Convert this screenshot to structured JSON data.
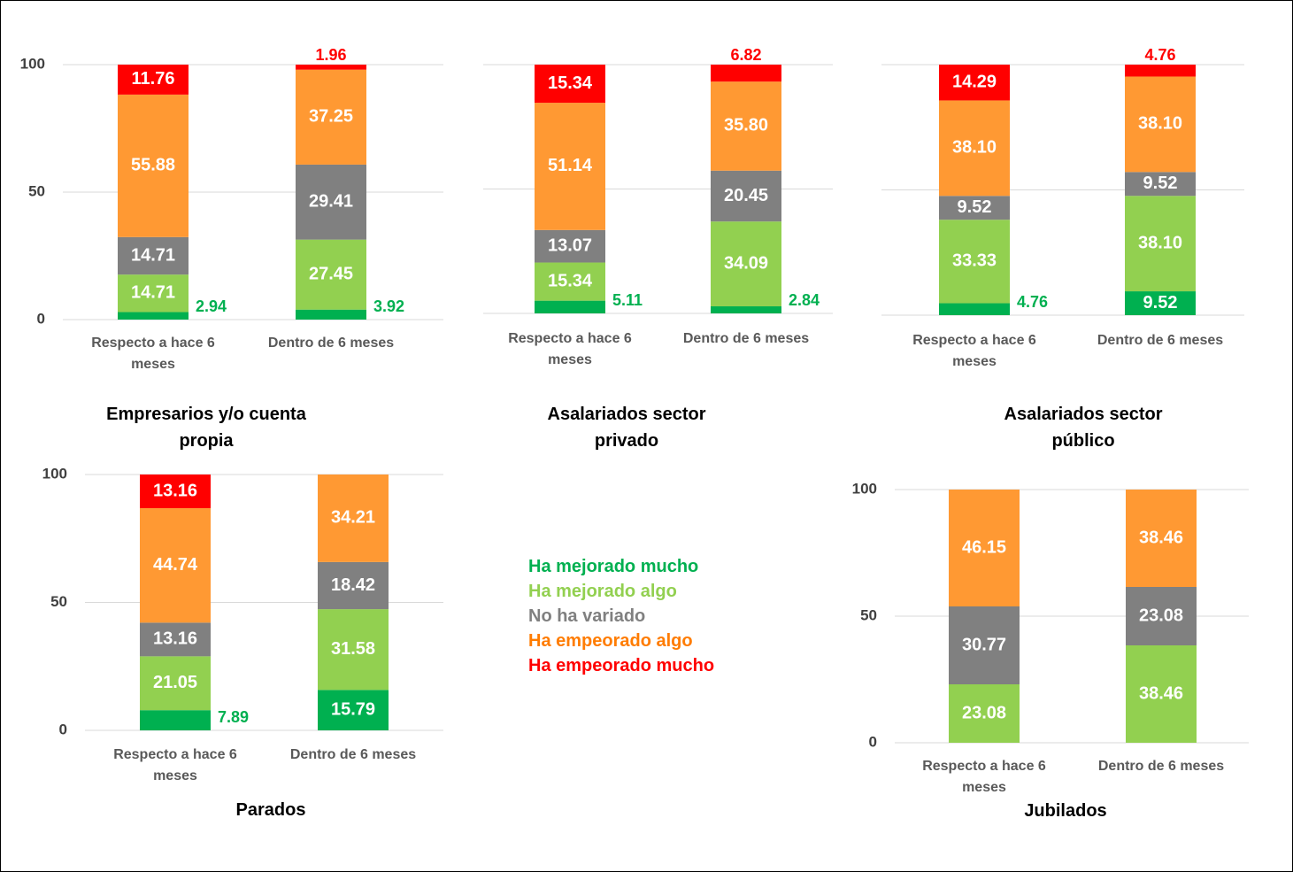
{
  "legend": [
    {
      "name": "Ha mejorado mucho",
      "color": "#00b050"
    },
    {
      "name": "Ha mejorado algo",
      "color": "#92d050"
    },
    {
      "name": "No ha variado",
      "color": "#808080"
    },
    {
      "name": "Ha empeorado algo",
      "color": "#ff7c00"
    },
    {
      "name": "Ha empeorado mucho",
      "color": "#ff0000"
    }
  ],
  "chart_data": [
    {
      "type": "stacked_bar",
      "title": "Empresarios y/o cuenta propia",
      "categories": [
        "Respecto a hace 6 meses",
        "Dentro de 6 meses"
      ],
      "ylim": [
        0,
        100
      ],
      "yticks": [
        0,
        50,
        100
      ],
      "ytick_labels": true,
      "grid": true,
      "series": [
        {
          "color": "#00b050",
          "values": [
            2.94,
            3.92
          ],
          "value_labels": [
            "2.94",
            "3.92"
          ]
        },
        {
          "color": "#92d050",
          "values": [
            14.71,
            27.45
          ],
          "value_labels": [
            "14.71",
            "27.45"
          ]
        },
        {
          "color": "#808080",
          "values": [
            14.71,
            29.41
          ],
          "value_labels": [
            "14.71",
            "29.41"
          ]
        },
        {
          "color": "#ff9933",
          "values": [
            55.88,
            37.25
          ],
          "value_labels": [
            "55.88",
            "37.25"
          ]
        },
        {
          "color": "#ff0000",
          "values": [
            11.76,
            1.96
          ],
          "value_labels": [
            "11.76",
            "1.96"
          ]
        }
      ]
    },
    {
      "type": "stacked_bar",
      "title": "Asalariados sector privado",
      "categories": [
        "Respecto a hace 6 meses",
        "Dentro de 6 meses"
      ],
      "ylim": [
        0,
        100
      ],
      "yticks": [
        0,
        50,
        100
      ],
      "ytick_labels": false,
      "grid": true,
      "series": [
        {
          "color": "#00b050",
          "values": [
            5.11,
            2.84
          ],
          "value_labels": [
            "5.11",
            "2.84"
          ]
        },
        {
          "color": "#92d050",
          "values": [
            15.34,
            34.09
          ],
          "value_labels": [
            "15.34",
            "34.09"
          ]
        },
        {
          "color": "#808080",
          "values": [
            13.07,
            20.45
          ],
          "value_labels": [
            "13.07",
            "20.45"
          ]
        },
        {
          "color": "#ff9933",
          "values": [
            51.14,
            35.8
          ],
          "value_labels": [
            "51.14",
            "35.80"
          ]
        },
        {
          "color": "#ff0000",
          "values": [
            15.34,
            6.82
          ],
          "value_labels": [
            "15.34",
            "6.82"
          ]
        }
      ]
    },
    {
      "type": "stacked_bar",
      "title": "Asalariados sector público",
      "categories": [
        "Respecto a hace 6 meses",
        "Dentro de 6 meses"
      ],
      "ylim": [
        0,
        100
      ],
      "yticks": [
        0,
        50,
        100
      ],
      "ytick_labels": false,
      "grid": true,
      "series": [
        {
          "color": "#00b050",
          "values": [
            4.76,
            9.52
          ],
          "value_labels": [
            "4.76",
            "9.52"
          ]
        },
        {
          "color": "#92d050",
          "values": [
            33.33,
            38.1
          ],
          "value_labels": [
            "33.33",
            "38.10"
          ]
        },
        {
          "color": "#808080",
          "values": [
            9.52,
            9.52
          ],
          "value_labels": [
            "9.52",
            "9.52"
          ]
        },
        {
          "color": "#ff9933",
          "values": [
            38.1,
            38.1
          ],
          "value_labels": [
            "38.10",
            "38.10"
          ]
        },
        {
          "color": "#ff0000",
          "values": [
            14.29,
            4.76
          ],
          "value_labels": [
            "14.29",
            "4.76"
          ]
        }
      ]
    },
    {
      "type": "stacked_bar",
      "title": "Parados",
      "categories": [
        "Respecto a hace 6 meses",
        "Dentro de 6 meses"
      ],
      "ylim": [
        0,
        100
      ],
      "yticks": [
        0,
        50,
        100
      ],
      "ytick_labels": true,
      "grid": true,
      "series": [
        {
          "color": "#00b050",
          "values": [
            7.89,
            15.79
          ],
          "value_labels": [
            "7.89",
            "15.79"
          ]
        },
        {
          "color": "#92d050",
          "values": [
            21.05,
            31.58
          ],
          "value_labels": [
            "21.05",
            "31.58"
          ]
        },
        {
          "color": "#808080",
          "values": [
            13.16,
            18.42
          ],
          "value_labels": [
            "13.16",
            "18.42"
          ]
        },
        {
          "color": "#ff9933",
          "values": [
            44.74,
            34.21
          ],
          "value_labels": [
            "44.74",
            "34.21"
          ]
        },
        {
          "color": "#ff0000",
          "values": [
            13.16,
            null
          ],
          "value_labels": [
            "13.16",
            null
          ]
        }
      ]
    },
    {
      "type": "stacked_bar",
      "title": "Jubilados",
      "categories": [
        "Respecto a hace 6 meses",
        "Dentro de 6 meses"
      ],
      "ylim": [
        0,
        100
      ],
      "yticks": [
        0,
        50,
        100
      ],
      "ytick_labels": true,
      "grid": true,
      "series": [
        {
          "color": "#00b050",
          "values": [
            null,
            null
          ],
          "value_labels": [
            null,
            null
          ]
        },
        {
          "color": "#92d050",
          "values": [
            23.08,
            38.46
          ],
          "value_labels": [
            "23.08",
            "38.46"
          ]
        },
        {
          "color": "#808080",
          "values": [
            30.77,
            23.08
          ],
          "value_labels": [
            "30.77",
            "23.08"
          ]
        },
        {
          "color": "#ff9933",
          "values": [
            46.15,
            38.46
          ],
          "value_labels": [
            "46.15",
            "38.46"
          ]
        },
        {
          "color": "#ff0000",
          "values": [
            null,
            null
          ],
          "value_labels": [
            null,
            null
          ]
        }
      ]
    }
  ]
}
